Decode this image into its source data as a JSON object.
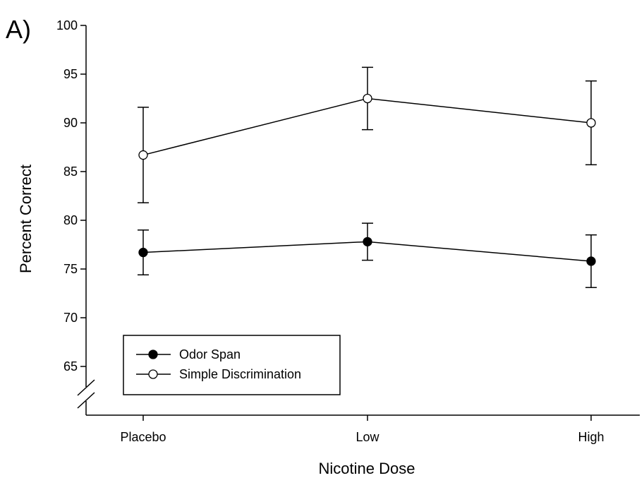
{
  "chart_data": {
    "type": "line",
    "panel_label": "A)",
    "xlabel": "Nicotine Dose",
    "ylabel": "Percent Correct",
    "categories": [
      "Placebo",
      "Low",
      "High"
    ],
    "ylim": [
      60,
      100
    ],
    "yticks": [
      65,
      70,
      75,
      80,
      85,
      90,
      95,
      100
    ],
    "y_axis_break": true,
    "grid": false,
    "legend_position": "bottom-left",
    "series": [
      {
        "name": "Odor Span",
        "marker": "filled-circle",
        "values": [
          76.7,
          77.8,
          75.8
        ],
        "error_upper": [
          79.0,
          79.7,
          78.5
        ],
        "error_lower": [
          74.4,
          75.9,
          73.1
        ]
      },
      {
        "name": "Simple Discrimination",
        "marker": "open-circle",
        "values": [
          86.7,
          92.5,
          90.0
        ],
        "error_upper": [
          91.6,
          95.7,
          94.3
        ],
        "error_lower": [
          81.8,
          89.3,
          85.7
        ]
      }
    ]
  }
}
